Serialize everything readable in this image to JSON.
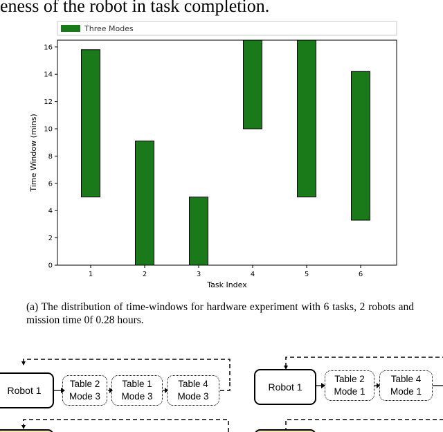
{
  "top_text": "eness of the robot in task completion.",
  "chart_data": {
    "type": "bar",
    "style": "floating",
    "legend": "Three Modes",
    "legend_position": "top",
    "color": "#1a7a1a",
    "xlabel": "Task Index",
    "ylabel": "Time Window (mins)",
    "categories": [
      "1",
      "2",
      "3",
      "4",
      "5",
      "6"
    ],
    "y_start": [
      5,
      0,
      0,
      10,
      5,
      3.3
    ],
    "y_end": [
      15.8,
      9.1,
      5,
      16.5,
      16.5,
      14.2
    ],
    "ylim": [
      0,
      16.5
    ],
    "yticks": [
      0,
      2,
      4,
      6,
      8,
      10,
      12,
      14,
      16
    ],
    "grid": false
  },
  "caption": "(a) The distribution of time-windows for hardware experiment with 6 tasks, 2 robots and mission time 0f 0.28 hours.",
  "flowchart": {
    "left": {
      "robot": "Robot 1",
      "tasks": [
        {
          "line1": "Table 2",
          "line2": "Mode 3"
        },
        {
          "line1": "Table 1",
          "line2": "Mode 3"
        },
        {
          "line1": "Table 4",
          "line2": "Mode 3"
        }
      ]
    },
    "right": {
      "robot": "Robot 1",
      "tasks": [
        {
          "line1": "Table 2",
          "line2": "Mode 1"
        },
        {
          "line1": "Table 4",
          "line2": "Mode 1"
        }
      ]
    }
  }
}
